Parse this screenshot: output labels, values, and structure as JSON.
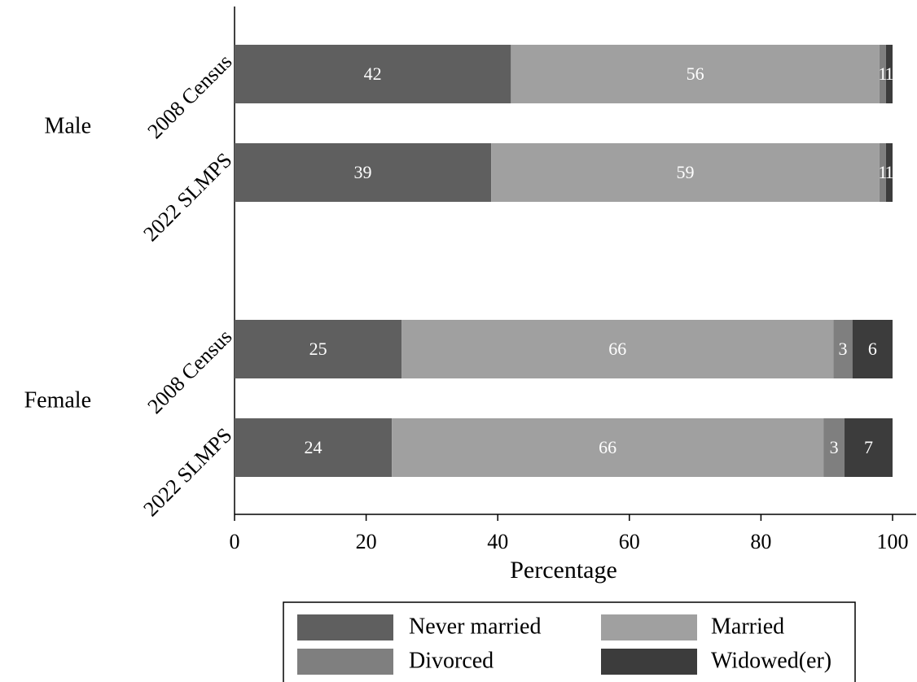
{
  "chart_data": {
    "type": "stacked-barh",
    "x_label": "Percentage",
    "groups": [
      {
        "name": "Male",
        "categories": [
          "2008 Census",
          "2022 SLMPS"
        ]
      },
      {
        "name": "Female",
        "categories": [
          "2008 Census",
          "2022 SLMPS"
        ]
      }
    ],
    "series": [
      {
        "name": "Never married",
        "color": "#5f5f5f",
        "values": [
          42,
          39,
          25.4,
          23.9
        ],
        "value_labels": [
          "42",
          "39",
          "25",
          "24"
        ]
      },
      {
        "name": "Married",
        "color": "#a0a0a0",
        "values": [
          56,
          59,
          65.6,
          65.6
        ],
        "value_labels": [
          "56",
          "59",
          "66",
          "66"
        ]
      },
      {
        "name": "Divorced",
        "color": "#7f7f7f",
        "values": [
          1,
          1,
          2.9,
          3.2
        ],
        "value_labels": [
          "1",
          "1",
          "3",
          "3"
        ]
      },
      {
        "name": "Widowed(er)",
        "color": "#3c3c3c",
        "values": [
          1,
          1,
          6.1,
          7.3
        ],
        "value_labels": [
          "1",
          "1",
          "6",
          "7"
        ]
      }
    ],
    "xlim": [
      0,
      100
    ],
    "xticks": [
      0,
      20,
      40,
      60,
      80,
      100
    ]
  }
}
